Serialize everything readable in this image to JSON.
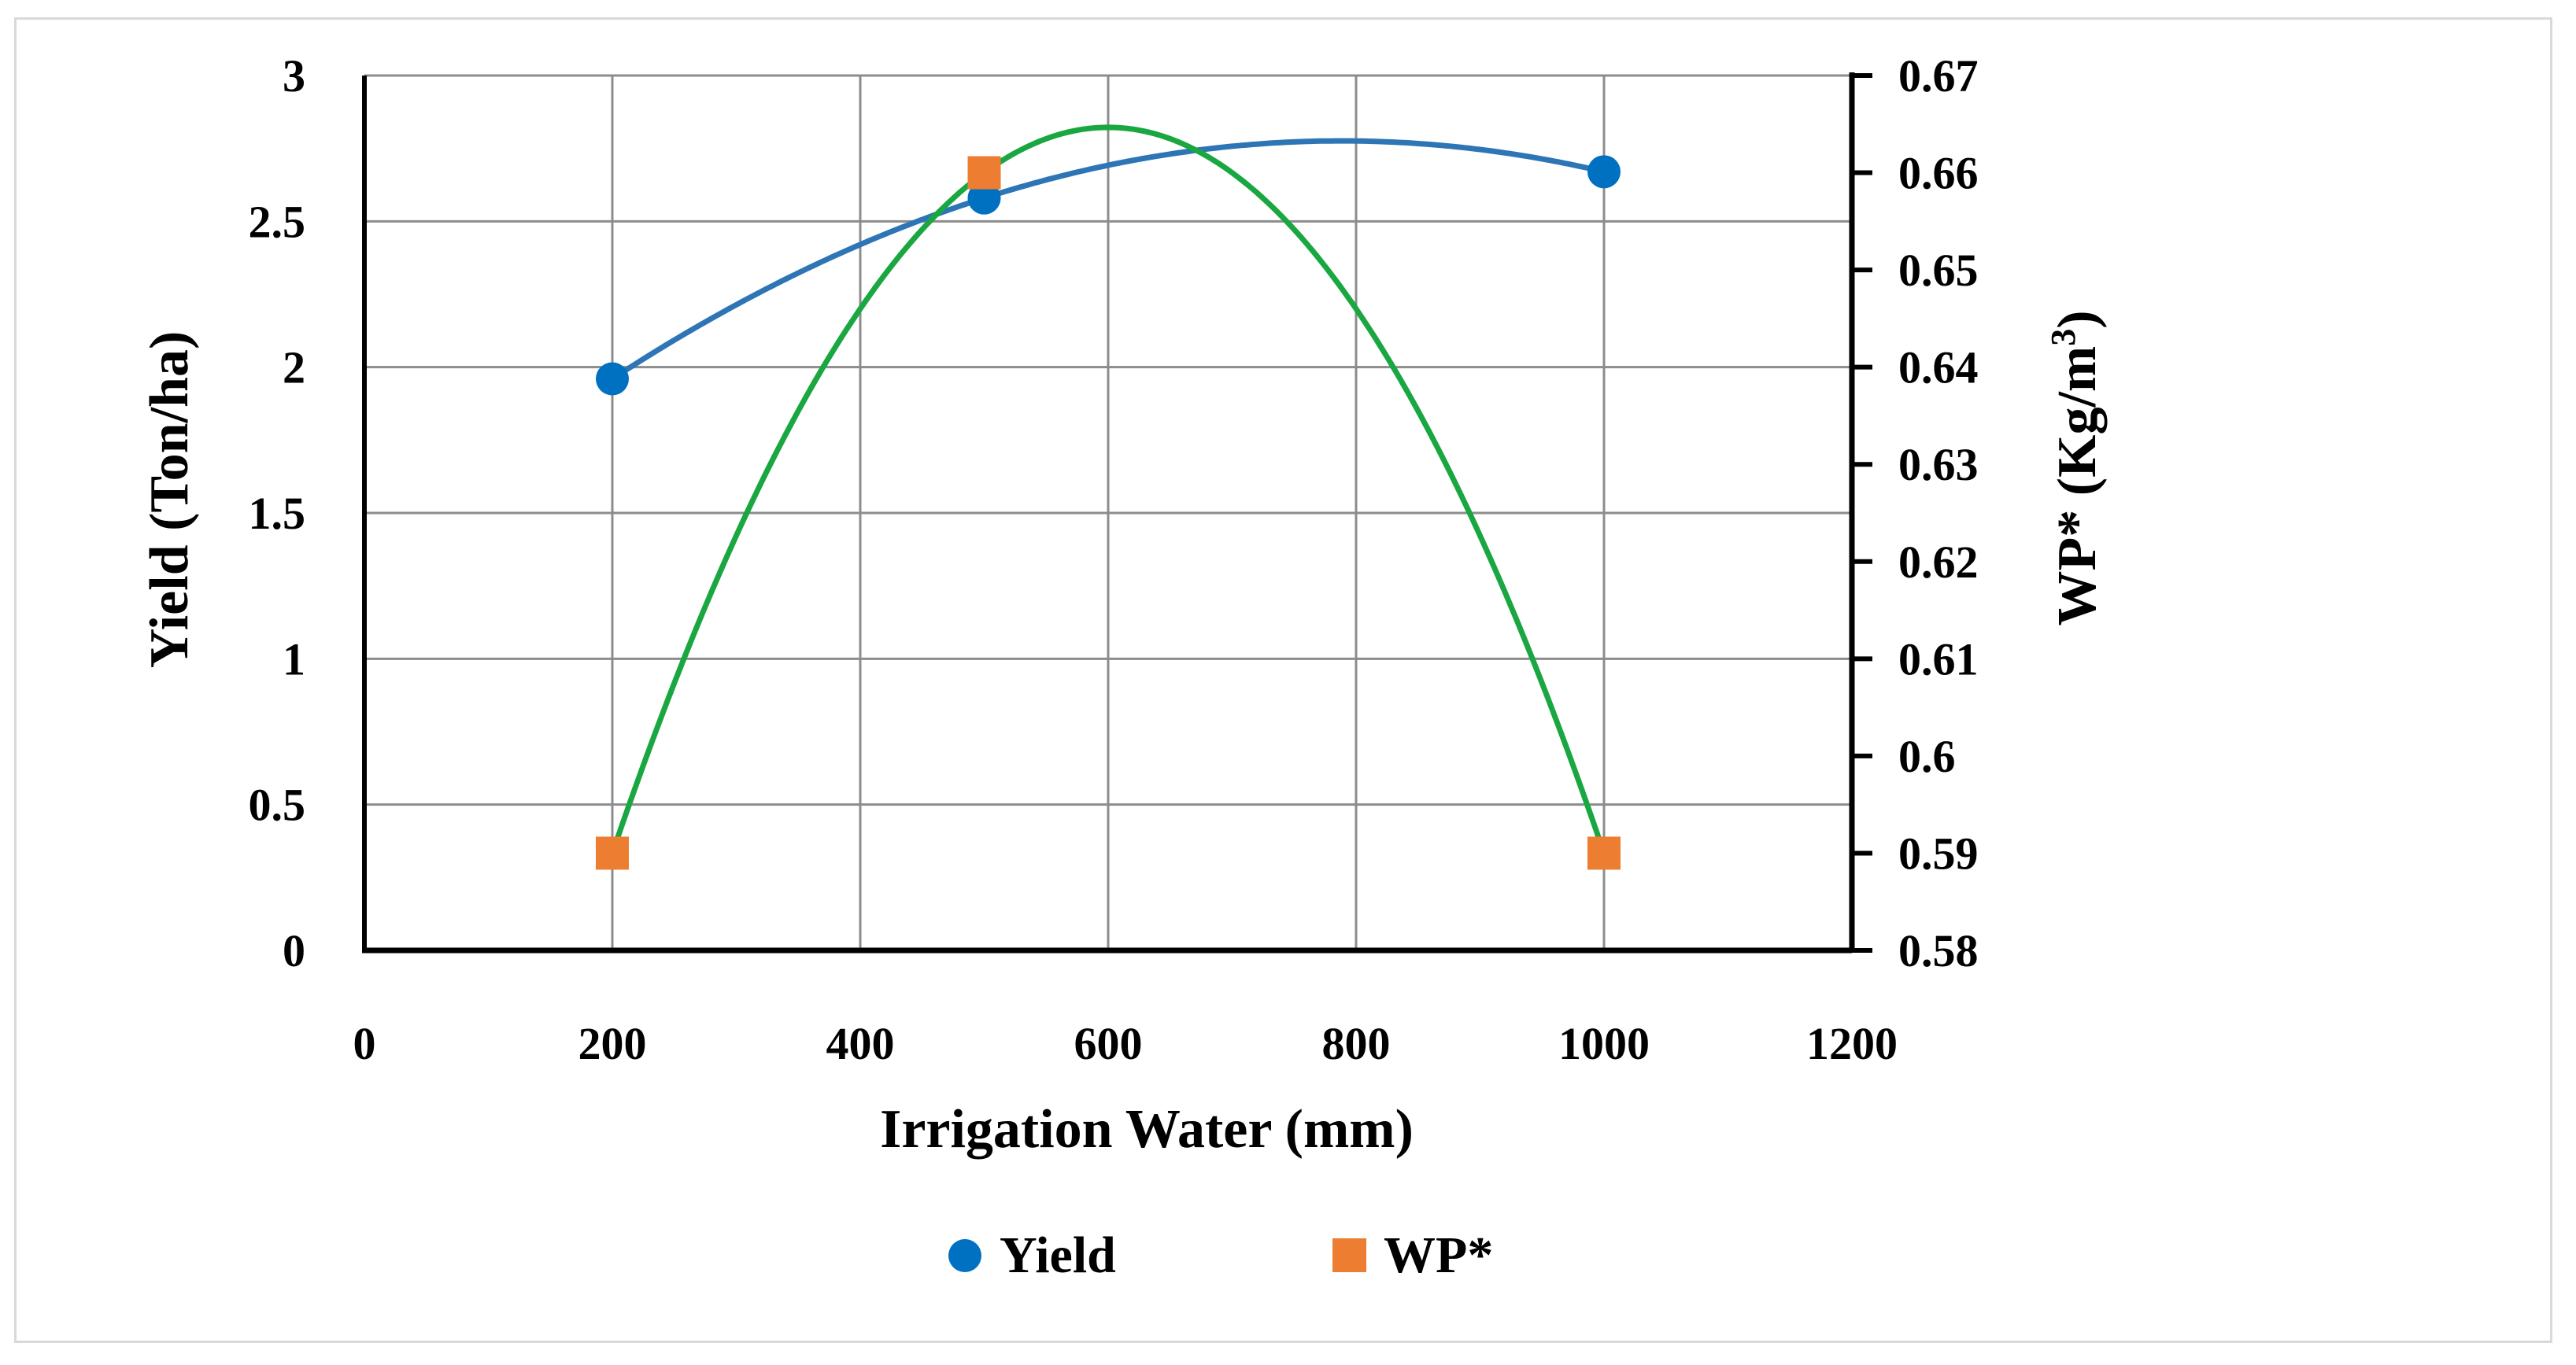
{
  "chart_data": {
    "type": "scatter",
    "title": "",
    "xlabel": "Irrigation Water (mm)",
    "ylabel_left": "Yield (Ton/ha)",
    "ylabel_right": {
      "main": "WP* (Kg/m",
      "superscript": "3",
      "close": ")"
    },
    "xlim": [
      0,
      1200
    ],
    "xticks": [
      "0",
      "200",
      "400",
      "600",
      "800",
      "1000",
      "1200"
    ],
    "ylim_left": [
      0,
      3
    ],
    "yticks_left": [
      "0",
      "0.5",
      "1",
      "1.5",
      "2",
      "2.5",
      "3"
    ],
    "ylim_right": [
      0.58,
      0.67
    ],
    "yticks_right": [
      "0.58",
      "0.59",
      "0.6",
      "0.61",
      "0.62",
      "0.63",
      "0.64",
      "0.65",
      "0.66",
      "0.67"
    ],
    "grid": true,
    "legend_position": "bottom",
    "series": [
      {
        "name": "Yield",
        "axis": "left",
        "marker": "circle",
        "color": "#0070c0",
        "x": [
          200,
          500,
          1000
        ],
        "y": [
          1.96,
          2.58,
          2.67
        ],
        "trendline": {
          "type": "polynomial-2",
          "color": "#2e75b6"
        }
      },
      {
        "name": "WP*",
        "axis": "right",
        "marker": "square",
        "color": "#ed7d31",
        "x": [
          200,
          500,
          1000
        ],
        "y": [
          0.59,
          0.66,
          0.59
        ],
        "trendline": {
          "type": "polynomial-2",
          "color": "#1aa741"
        }
      }
    ]
  }
}
